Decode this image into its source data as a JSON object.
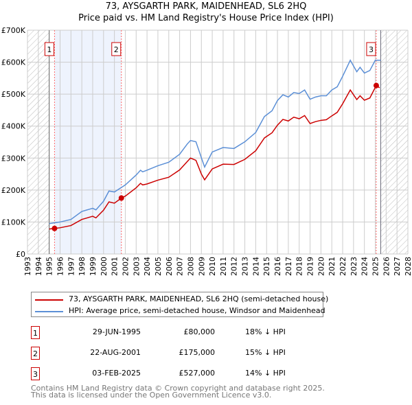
{
  "chart_data": {
    "type": "line",
    "title": "73, AYSGARTH PARK, MAIDENHEAD, SL6 2HQ",
    "subtitle": "Price paid vs. HM Land Registry's House Price Index (HPI)",
    "xlim": [
      1993,
      2028
    ],
    "ylim": [
      0,
      700000
    ],
    "x_ticks": [
      "1993",
      "1994",
      "1995",
      "1996",
      "1997",
      "1998",
      "1999",
      "2000",
      "2001",
      "2002",
      "2003",
      "2004",
      "2005",
      "2006",
      "2007",
      "2008",
      "2009",
      "2010",
      "2011",
      "2012",
      "2013",
      "2014",
      "2015",
      "2016",
      "2017",
      "2018",
      "2019",
      "2020",
      "2021",
      "2022",
      "2023",
      "2024",
      "2025",
      "2026",
      "2027",
      "2028"
    ],
    "y_ticks": [
      {
        "v": 0,
        "label": "£0"
      },
      {
        "v": 100000,
        "label": "£100K"
      },
      {
        "v": 200000,
        "label": "£200K"
      },
      {
        "v": 300000,
        "label": "£300K"
      },
      {
        "v": 400000,
        "label": "£400K"
      },
      {
        "v": 500000,
        "label": "£500K"
      },
      {
        "v": 600000,
        "label": "£600K"
      },
      {
        "v": 700000,
        "label": "£700K"
      }
    ],
    "grid": true,
    "hatched_ranges": [
      [
        1993,
        1995
      ],
      [
        2025.5,
        2028
      ]
    ],
    "shaded_range": [
      1995.49,
      2001.64
    ],
    "series": [
      {
        "name": "73, AYSGARTH PARK, MAIDENHEAD, SL6 2HQ (semi-detached house)",
        "color": "#cc0000",
        "points": [
          [
            1995.0,
            78000
          ],
          [
            1995.49,
            80000
          ],
          [
            1996,
            82000
          ],
          [
            1997,
            89000
          ],
          [
            1998,
            108000
          ],
          [
            1999,
            118000
          ],
          [
            1999.3,
            113000
          ],
          [
            2000,
            137000
          ],
          [
            2000.5,
            163000
          ],
          [
            2001,
            159000
          ],
          [
            2001.64,
            175000
          ],
          [
            2002,
            181000
          ],
          [
            2003,
            207000
          ],
          [
            2003.4,
            221000
          ],
          [
            2003.6,
            216000
          ],
          [
            2004,
            219000
          ],
          [
            2005,
            231000
          ],
          [
            2006,
            240000
          ],
          [
            2007,
            263000
          ],
          [
            2007.7,
            289000
          ],
          [
            2008,
            300000
          ],
          [
            2008.5,
            293000
          ],
          [
            2009,
            250000
          ],
          [
            2009.3,
            232000
          ],
          [
            2010,
            266000
          ],
          [
            2011,
            281000
          ],
          [
            2012,
            280000
          ],
          [
            2013,
            296000
          ],
          [
            2014,
            323000
          ],
          [
            2014.8,
            363000
          ],
          [
            2015.5,
            379000
          ],
          [
            2016,
            403000
          ],
          [
            2016.5,
            421000
          ],
          [
            2017,
            416000
          ],
          [
            2017.5,
            428000
          ],
          [
            2018,
            423000
          ],
          [
            2018.5,
            433000
          ],
          [
            2019,
            408000
          ],
          [
            2019.5,
            414000
          ],
          [
            2020,
            418000
          ],
          [
            2020.5,
            420000
          ],
          [
            2021,
            432000
          ],
          [
            2021.5,
            443000
          ],
          [
            2022,
            470000
          ],
          [
            2022.7,
            513000
          ],
          [
            2023.3,
            483000
          ],
          [
            2023.6,
            495000
          ],
          [
            2024,
            481000
          ],
          [
            2024.5,
            488000
          ],
          [
            2025.09,
            527000
          ],
          [
            2025.4,
            520000
          ]
        ]
      },
      {
        "name": "HPI: Average price, semi-detached house, Windsor and Maidenhead",
        "color": "#5b8fd6",
        "points": [
          [
            1995.0,
            95000
          ],
          [
            1996,
            100000
          ],
          [
            1997,
            108000
          ],
          [
            1998,
            133000
          ],
          [
            1999,
            143000
          ],
          [
            1999.3,
            138000
          ],
          [
            2000,
            165000
          ],
          [
            2000.5,
            197000
          ],
          [
            2001,
            194000
          ],
          [
            2001.64,
            208000
          ],
          [
            2002,
            216000
          ],
          [
            2003,
            247000
          ],
          [
            2003.4,
            262000
          ],
          [
            2003.6,
            257000
          ],
          [
            2004,
            262000
          ],
          [
            2005,
            276000
          ],
          [
            2006,
            287000
          ],
          [
            2007,
            312000
          ],
          [
            2007.7,
            344000
          ],
          [
            2008,
            355000
          ],
          [
            2008.5,
            351000
          ],
          [
            2009,
            301000
          ],
          [
            2009.3,
            272000
          ],
          [
            2010,
            319000
          ],
          [
            2011,
            333000
          ],
          [
            2012,
            330000
          ],
          [
            2013,
            351000
          ],
          [
            2014,
            380000
          ],
          [
            2014.8,
            430000
          ],
          [
            2015.5,
            448000
          ],
          [
            2016,
            480000
          ],
          [
            2016.5,
            498000
          ],
          [
            2017,
            491000
          ],
          [
            2017.5,
            505000
          ],
          [
            2018,
            502000
          ],
          [
            2018.5,
            513000
          ],
          [
            2019,
            484000
          ],
          [
            2019.5,
            491000
          ],
          [
            2020,
            495000
          ],
          [
            2020.5,
            495000
          ],
          [
            2021,
            513000
          ],
          [
            2021.5,
            523000
          ],
          [
            2022,
            556000
          ],
          [
            2022.7,
            606000
          ],
          [
            2023.3,
            570000
          ],
          [
            2023.6,
            584000
          ],
          [
            2024,
            566000
          ],
          [
            2024.5,
            574000
          ],
          [
            2025,
            606000
          ],
          [
            2025.5,
            606000
          ]
        ]
      }
    ],
    "sales": [
      {
        "id": "1",
        "x": 1995.49,
        "price": 80000,
        "date": "29-JUN-1995",
        "price_label": "£80,000",
        "hpi": "18% ↓ HPI"
      },
      {
        "id": "2",
        "x": 2001.64,
        "price": 175000,
        "date": "22-AUG-2001",
        "price_label": "£175,000",
        "hpi": "15% ↓ HPI"
      },
      {
        "id": "3",
        "x": 2025.09,
        "price": 527000,
        "date": "03-FEB-2025",
        "price_label": "£527,000",
        "hpi": "14% ↓ HPI"
      }
    ]
  },
  "footer": {
    "line1": "Contains HM Land Registry data © Crown copyright and database right 2025.",
    "line2": "This data is licensed under the Open Government Licence v3.0."
  }
}
